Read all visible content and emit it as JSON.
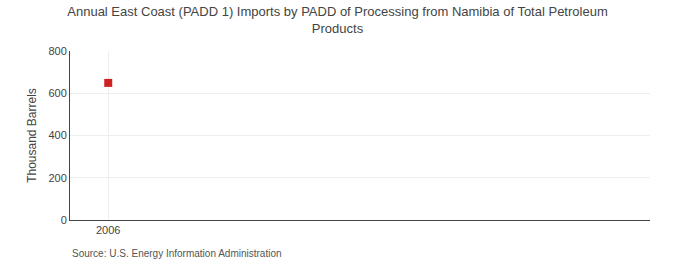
{
  "chart_data": {
    "type": "scatter",
    "title": "Annual East Coast (PADD 1) Imports by PADD of Processing from Namibia of Total Petroleum\nProducts",
    "ylabel": "Thousand Barrels",
    "annotation": "Source: U.S. Energy Information Administration",
    "x": [
      2006
    ],
    "values": [
      649
    ],
    "color": "#cc2222",
    "marker": "square",
    "xlim": [
      2005.4,
      2014.5
    ],
    "xticks": [
      2006
    ],
    "ylim": [
      0,
      800
    ],
    "yticks": [
      0,
      200,
      400,
      600,
      800
    ],
    "grid": true
  }
}
